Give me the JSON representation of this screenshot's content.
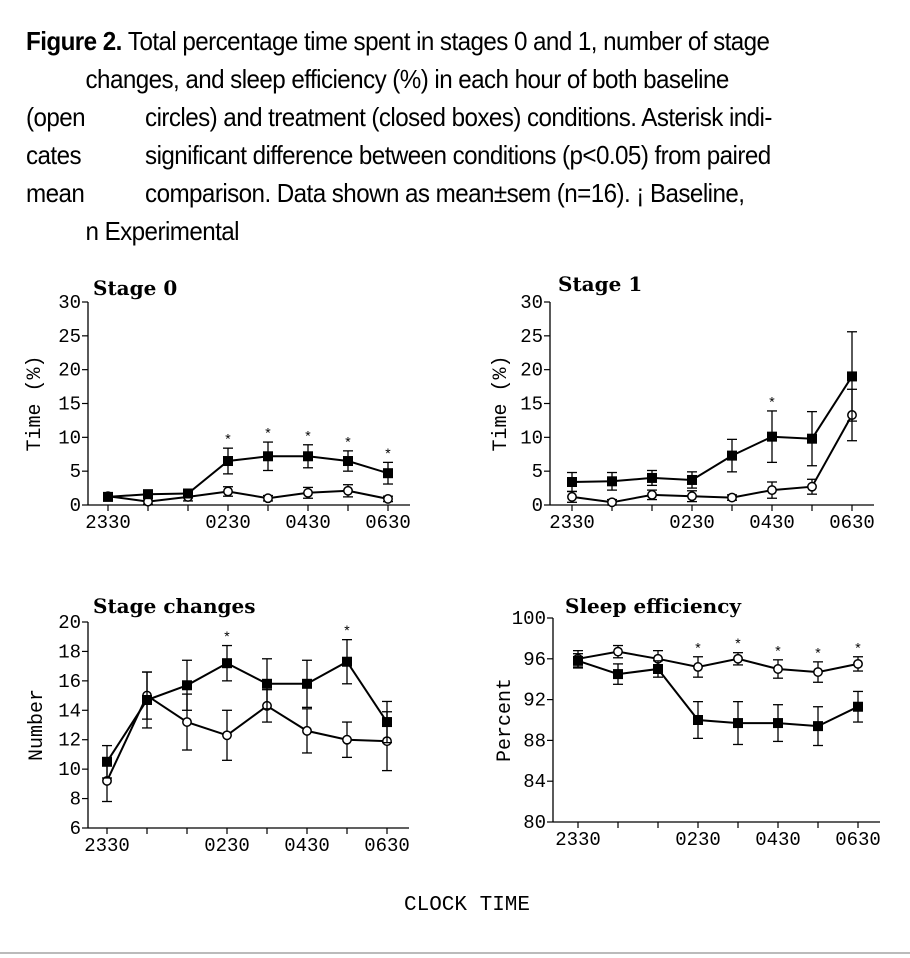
{
  "caption": {
    "label": "Figure 2.",
    "line1": "Total percentage time spent in stages 0 and 1, number of stage",
    "line2": "changes, and sleep efficiency (%) in each hour of both baseline",
    "line3_left": "(open",
    "line3_right": "circles) and treatment (closed boxes) conditions.  Asterisk indi-",
    "line4_left": "cates",
    "line4_right": "significant difference between conditions (p<0.05) from paired",
    "line5_left": "mean",
    "line5_right": "comparison.  Data shown as mean±sem (n=16). ¡ Baseline,",
    "line6": "n Experimental"
  },
  "x_axis_label": "CLOCK TIME",
  "chart_data": [
    {
      "id": "stage0",
      "type": "line",
      "title": "Stage 0",
      "ylabel": "Time (%)",
      "ylim": [
        0,
        30
      ],
      "yticks": [
        0,
        5,
        10,
        15,
        20,
        25,
        30
      ],
      "x": [
        0,
        1,
        2,
        3,
        4,
        5,
        6,
        7
      ],
      "xticks": [
        {
          "x": 0,
          "label": "2330"
        },
        {
          "x": 3,
          "label": "0230"
        },
        {
          "x": 5,
          "label": "0430"
        },
        {
          "x": 7,
          "label": "0630"
        }
      ],
      "series": [
        {
          "name": "Baseline",
          "marker": "open-circle",
          "values": [
            1.3,
            0.5,
            1.2,
            2.0,
            1.0,
            1.8,
            2.1,
            0.9
          ],
          "errors": [
            0.5,
            0.4,
            0.6,
            0.7,
            0.4,
            0.8,
            0.9,
            0.4
          ]
        },
        {
          "name": "Experimental",
          "marker": "filled-square",
          "values": [
            1.2,
            1.6,
            1.7,
            6.5,
            7.2,
            7.2,
            6.5,
            4.7
          ],
          "errors": [
            0.6,
            0.4,
            0.5,
            1.9,
            2.1,
            1.7,
            1.5,
            1.6
          ]
        }
      ],
      "significant": [
        3,
        4,
        5,
        6,
        7
      ],
      "asterisk": "*"
    },
    {
      "id": "stage1",
      "type": "line",
      "title": "Stage 1",
      "ylabel": "Time (%)",
      "ylim": [
        0,
        30
      ],
      "yticks": [
        0,
        5,
        10,
        15,
        20,
        25,
        30
      ],
      "x": [
        0,
        1,
        2,
        3,
        4,
        5,
        6,
        7
      ],
      "xticks": [
        {
          "x": 0,
          "label": "2330"
        },
        {
          "x": 3,
          "label": "0230"
        },
        {
          "x": 5,
          "label": "0430"
        },
        {
          "x": 7,
          "label": "0630"
        }
      ],
      "series": [
        {
          "name": "Baseline",
          "marker": "open-circle",
          "values": [
            1.2,
            0.4,
            1.5,
            1.3,
            1.1,
            2.2,
            2.7,
            13.3
          ],
          "errors": [
            0.8,
            0.4,
            0.7,
            0.8,
            0.4,
            1.2,
            1.1,
            3.8
          ]
        },
        {
          "name": "Experimental",
          "marker": "filled-square",
          "values": [
            3.4,
            3.5,
            4.0,
            3.7,
            7.3,
            10.1,
            9.8,
            19.0
          ],
          "errors": [
            1.4,
            1.3,
            1.1,
            1.2,
            2.4,
            3.8,
            4.0,
            6.6
          ]
        }
      ],
      "significant": [
        5
      ],
      "asterisk": "*"
    },
    {
      "id": "changes",
      "type": "line",
      "title": "Stage changes",
      "ylabel": "Number",
      "ylim": [
        6,
        20
      ],
      "yticks": [
        6,
        8,
        10,
        12,
        14,
        16,
        18,
        20
      ],
      "x": [
        0,
        1,
        2,
        3,
        4,
        5,
        6,
        7
      ],
      "xticks": [
        {
          "x": 0,
          "label": "2330"
        },
        {
          "x": 3,
          "label": "0230"
        },
        {
          "x": 5,
          "label": "0430"
        },
        {
          "x": 7,
          "label": "0630"
        }
      ],
      "series": [
        {
          "name": "Baseline",
          "marker": "open-circle",
          "values": [
            9.2,
            15.0,
            13.2,
            12.3,
            14.3,
            12.6,
            12.0,
            11.9
          ],
          "errors": [
            1.4,
            1.6,
            1.9,
            1.7,
            1.1,
            1.5,
            1.2,
            2.0
          ]
        },
        {
          "name": "Experimental",
          "marker": "filled-square",
          "values": [
            10.5,
            14.7,
            15.7,
            17.2,
            15.8,
            15.8,
            17.3,
            13.2
          ],
          "errors": [
            1.1,
            1.9,
            1.7,
            1.2,
            1.7,
            1.6,
            1.5,
            1.4
          ]
        }
      ],
      "significant": [
        3,
        6
      ],
      "asterisk": "*"
    },
    {
      "id": "efficiency",
      "type": "line",
      "title": "Sleep efficiency",
      "ylabel": "Percent",
      "ylim": [
        80,
        100
      ],
      "yticks": [
        80,
        84,
        88,
        92,
        96,
        100
      ],
      "x": [
        0,
        1,
        2,
        3,
        4,
        5,
        6,
        7
      ],
      "xticks": [
        {
          "x": 0,
          "label": "2330"
        },
        {
          "x": 3,
          "label": "0230"
        },
        {
          "x": 5,
          "label": "0430"
        },
        {
          "x": 7,
          "label": "0630"
        }
      ],
      "series": [
        {
          "name": "Baseline",
          "marker": "open-circle",
          "values": [
            96.0,
            96.7,
            96.0,
            95.2,
            96.0,
            95.0,
            94.7,
            95.5
          ],
          "errors": [
            0.8,
            0.6,
            0.8,
            1.0,
            0.6,
            0.9,
            1.0,
            0.7
          ]
        },
        {
          "name": "Experimental",
          "marker": "filled-square",
          "values": [
            95.8,
            94.5,
            95.0,
            90.0,
            89.7,
            89.7,
            89.4,
            91.3
          ],
          "errors": [
            0.7,
            1.0,
            0.8,
            1.8,
            2.1,
            1.8,
            1.9,
            1.5
          ]
        }
      ],
      "significant": [
        3,
        4,
        5,
        6,
        7
      ],
      "asterisk": "*"
    }
  ]
}
